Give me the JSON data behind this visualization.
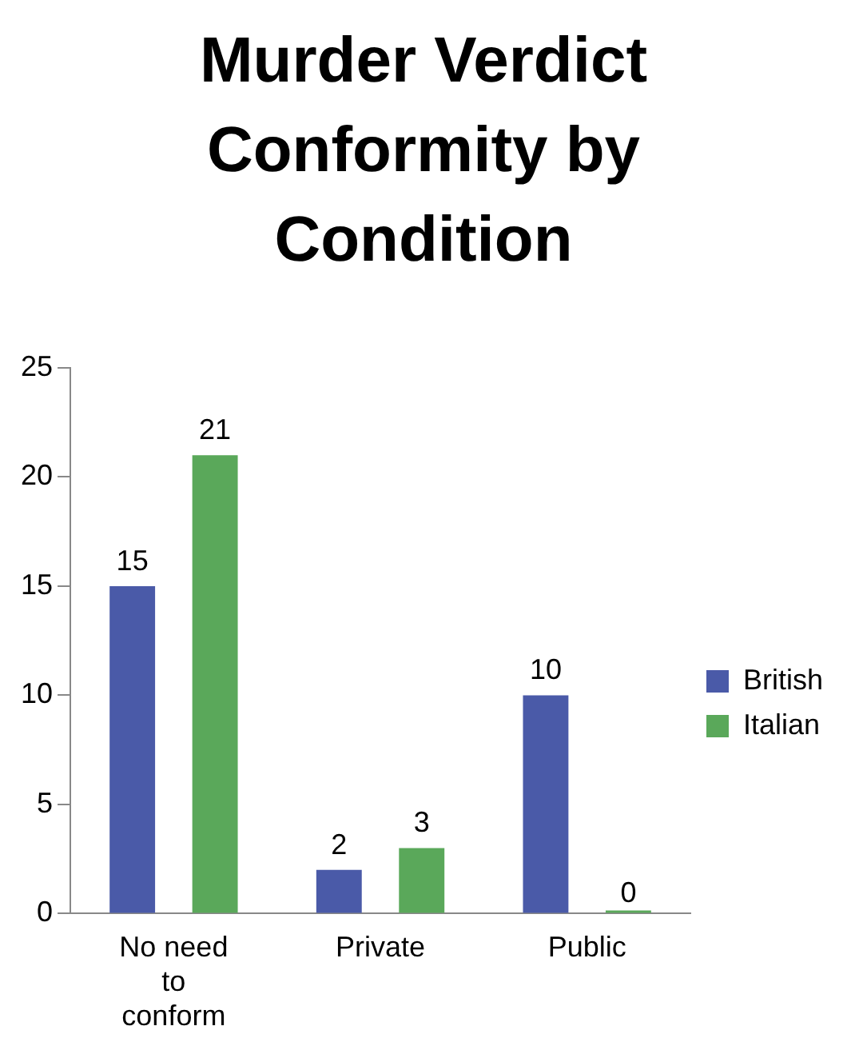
{
  "chart_data": {
    "type": "bar",
    "title": "Murder Verdict Conformity by Condition",
    "categories": [
      "No need to conform",
      "Private",
      "Public"
    ],
    "series": [
      {
        "name": "British",
        "color": "#4a5aa8",
        "values": [
          15,
          2,
          10
        ]
      },
      {
        "name": "Italian",
        "color": "#5aa85a",
        "values": [
          21,
          3,
          0
        ]
      }
    ],
    "ylim": [
      0,
      25
    ],
    "yticks": [
      0,
      5,
      10,
      15,
      20,
      25
    ],
    "grid": false,
    "legend": "right",
    "data_labels": true
  }
}
